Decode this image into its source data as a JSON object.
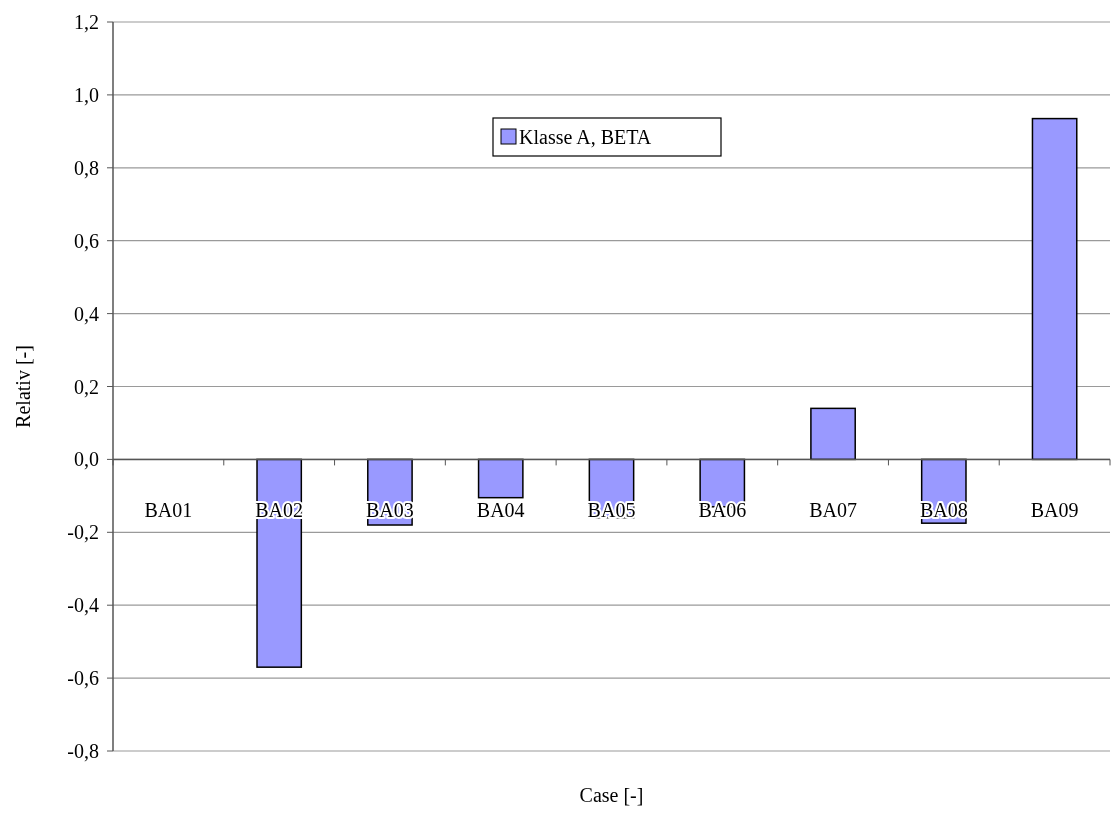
{
  "chart_data": {
    "type": "bar",
    "xlabel": "Case [-]",
    "ylabel": "Relativ [-]",
    "categories": [
      "BA01",
      "BA02",
      "BA03",
      "BA04",
      "BA05",
      "BA06",
      "BA07",
      "BA08",
      "BA09"
    ],
    "series": [
      {
        "name": "Klasse A, BETA",
        "color": "#9999ff",
        "values": [
          0,
          -0.57,
          -0.18,
          -0.105,
          -0.16,
          -0.13,
          0.14,
          -0.175,
          0.935
        ]
      }
    ],
    "ylim": [
      -0.8,
      1.2
    ],
    "yticks": [
      {
        "value": -0.8,
        "label": "-0,8"
      },
      {
        "value": -0.6,
        "label": "-0,6"
      },
      {
        "value": -0.4,
        "label": "-0,4"
      },
      {
        "value": -0.2,
        "label": "-0,2"
      },
      {
        "value": 0,
        "label": "0,0"
      },
      {
        "value": 0.2,
        "label": "0,2"
      },
      {
        "value": 0.4,
        "label": "0,4"
      },
      {
        "value": 0.6,
        "label": "0,6"
      },
      {
        "value": 0.8,
        "label": "0,8"
      },
      {
        "value": 1,
        "label": "1,0"
      },
      {
        "value": 1.2,
        "label": "1,2"
      }
    ],
    "grid": "y",
    "legend": "top"
  }
}
